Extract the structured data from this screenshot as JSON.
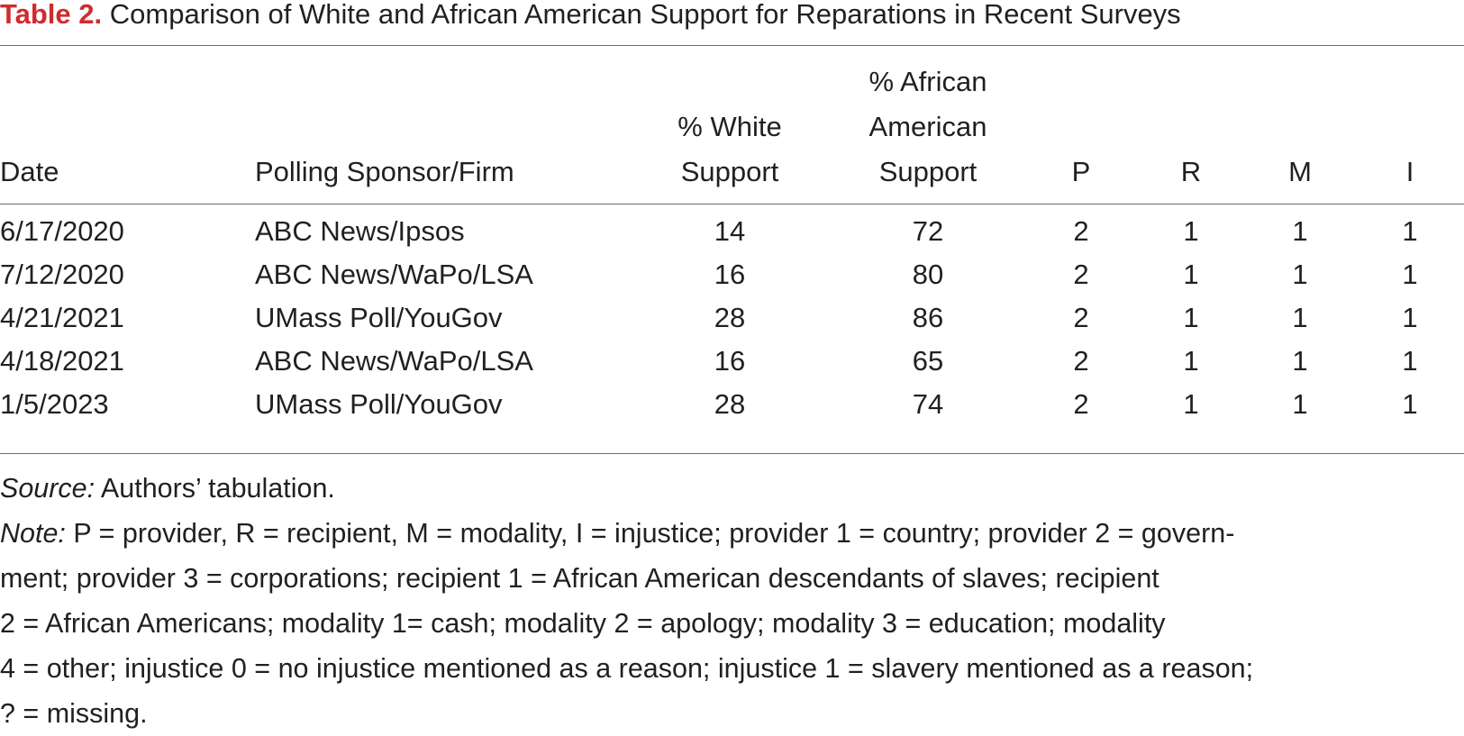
{
  "table": {
    "caption_label": "Table 2.",
    "caption_text": "Comparison of White and African American Support for Reparations in Recent Surveys",
    "headers": {
      "date": [
        "Date"
      ],
      "poll": [
        "Polling Sponsor/Firm"
      ],
      "white": [
        "% White",
        "Support"
      ],
      "afr": [
        "% African",
        "American",
        "Support"
      ],
      "p": [
        "P"
      ],
      "r": [
        "R"
      ],
      "m": [
        "M"
      ],
      "i": [
        "I"
      ]
    },
    "rows": [
      {
        "date": "6/17/2020",
        "poll": "ABC News/Ipsos",
        "white": "14",
        "afr": "72",
        "p": "2",
        "r": "1",
        "m": "1",
        "i": "1"
      },
      {
        "date": "7/12/2020",
        "poll": "ABC News/WaPo/LSA",
        "white": "16",
        "afr": "80",
        "p": "2",
        "r": "1",
        "m": "1",
        "i": "1"
      },
      {
        "date": "4/21/2021",
        "poll": "UMass Poll/YouGov",
        "white": "28",
        "afr": "86",
        "p": "2",
        "r": "1",
        "m": "1",
        "i": "1"
      },
      {
        "date": "4/18/2021",
        "poll": "ABC News/WaPo/LSA",
        "white": "16",
        "afr": "65",
        "p": "2",
        "r": "1",
        "m": "1",
        "i": "1"
      },
      {
        "date": "1/5/2023",
        "poll": "UMass Poll/YouGov",
        "white": "28",
        "afr": "74",
        "p": "2",
        "r": "1",
        "m": "1",
        "i": "1"
      }
    ],
    "source_label": "Source:",
    "source_text": " Authors’ tabulation.",
    "note_label": "Note:",
    "note_lines": [
      " P = provider, R = recipient, M = modality, I = injustice; provider 1 = country; provider 2 = govern-",
      "ment; provider 3 = corporations; recipient 1 = African American descendants of slaves; recipient",
      "2 = African Americans; modality 1= cash; modality 2 = apology; modality 3 = education; modality",
      "4 = other; injustice 0 = no injustice mentioned as a reason; injustice 1 = slavery mentioned as a reason;",
      "? = missing."
    ],
    "colors": {
      "caption_label": "#d12a2f",
      "text": "#231f20",
      "rule": "#6d6d6d"
    }
  }
}
